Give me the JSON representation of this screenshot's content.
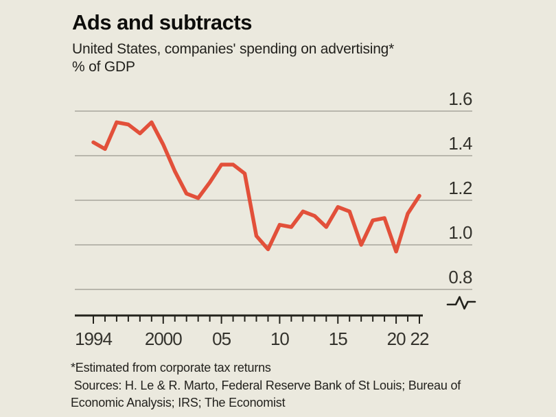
{
  "header": {
    "title": "Ads and subtracts",
    "subtitle": "United States, companies' spending on advertising*",
    "unit_line": "% of GDP"
  },
  "chart_data": {
    "type": "line",
    "title": "Ads and subtracts",
    "subtitle": "United States, companies' spending on advertising*",
    "ylabel": "% of GDP",
    "series_name": "US companies' advertising spend, % of GDP",
    "x": [
      1994,
      1995,
      1996,
      1997,
      1998,
      1999,
      2000,
      2001,
      2002,
      2003,
      2004,
      2005,
      2006,
      2007,
      2008,
      2009,
      2010,
      2011,
      2012,
      2013,
      2014,
      2015,
      2016,
      2017,
      2018,
      2019,
      2020,
      2021,
      2022
    ],
    "values": [
      1.46,
      1.43,
      1.55,
      1.54,
      1.5,
      1.55,
      1.45,
      1.33,
      1.23,
      1.21,
      1.28,
      1.36,
      1.36,
      1.32,
      1.04,
      0.98,
      1.09,
      1.08,
      1.15,
      1.13,
      1.08,
      1.17,
      1.15,
      1.0,
      1.11,
      1.12,
      0.97,
      1.14,
      1.22
    ],
    "ylim": [
      0.72,
      1.66
    ],
    "axis_break": true,
    "grid": "horizontal",
    "legend": "none",
    "ytick_labels": [
      "1.6",
      "1.4",
      "1.2",
      "1.0",
      "0.8"
    ],
    "xticks": [
      {
        "x": 1994,
        "label": "1994"
      },
      {
        "x": 2000,
        "label": "2000"
      },
      {
        "x": 2005,
        "label": "05"
      },
      {
        "x": 2010,
        "label": "10"
      },
      {
        "x": 2015,
        "label": "15"
      },
      {
        "x": 2020,
        "label": "20"
      },
      {
        "x": 2022,
        "label": "22"
      }
    ]
  },
  "footer": {
    "note": "*Estimated from corporate tax returns",
    "source_line_1": " Sources: H. Le & R. Marto, Federal Reserve Bank of St Louis; Bureau of",
    "source_line_2": "Economic Analysis; IRS; The Economist"
  },
  "colors": {
    "background": "#ebe9de",
    "line": "#e2503a",
    "grid": "#a8a69b",
    "axis": "#23221c",
    "tick_text": "#33322c",
    "title_text": "#0d0d0b",
    "body_text": "#22211d"
  }
}
